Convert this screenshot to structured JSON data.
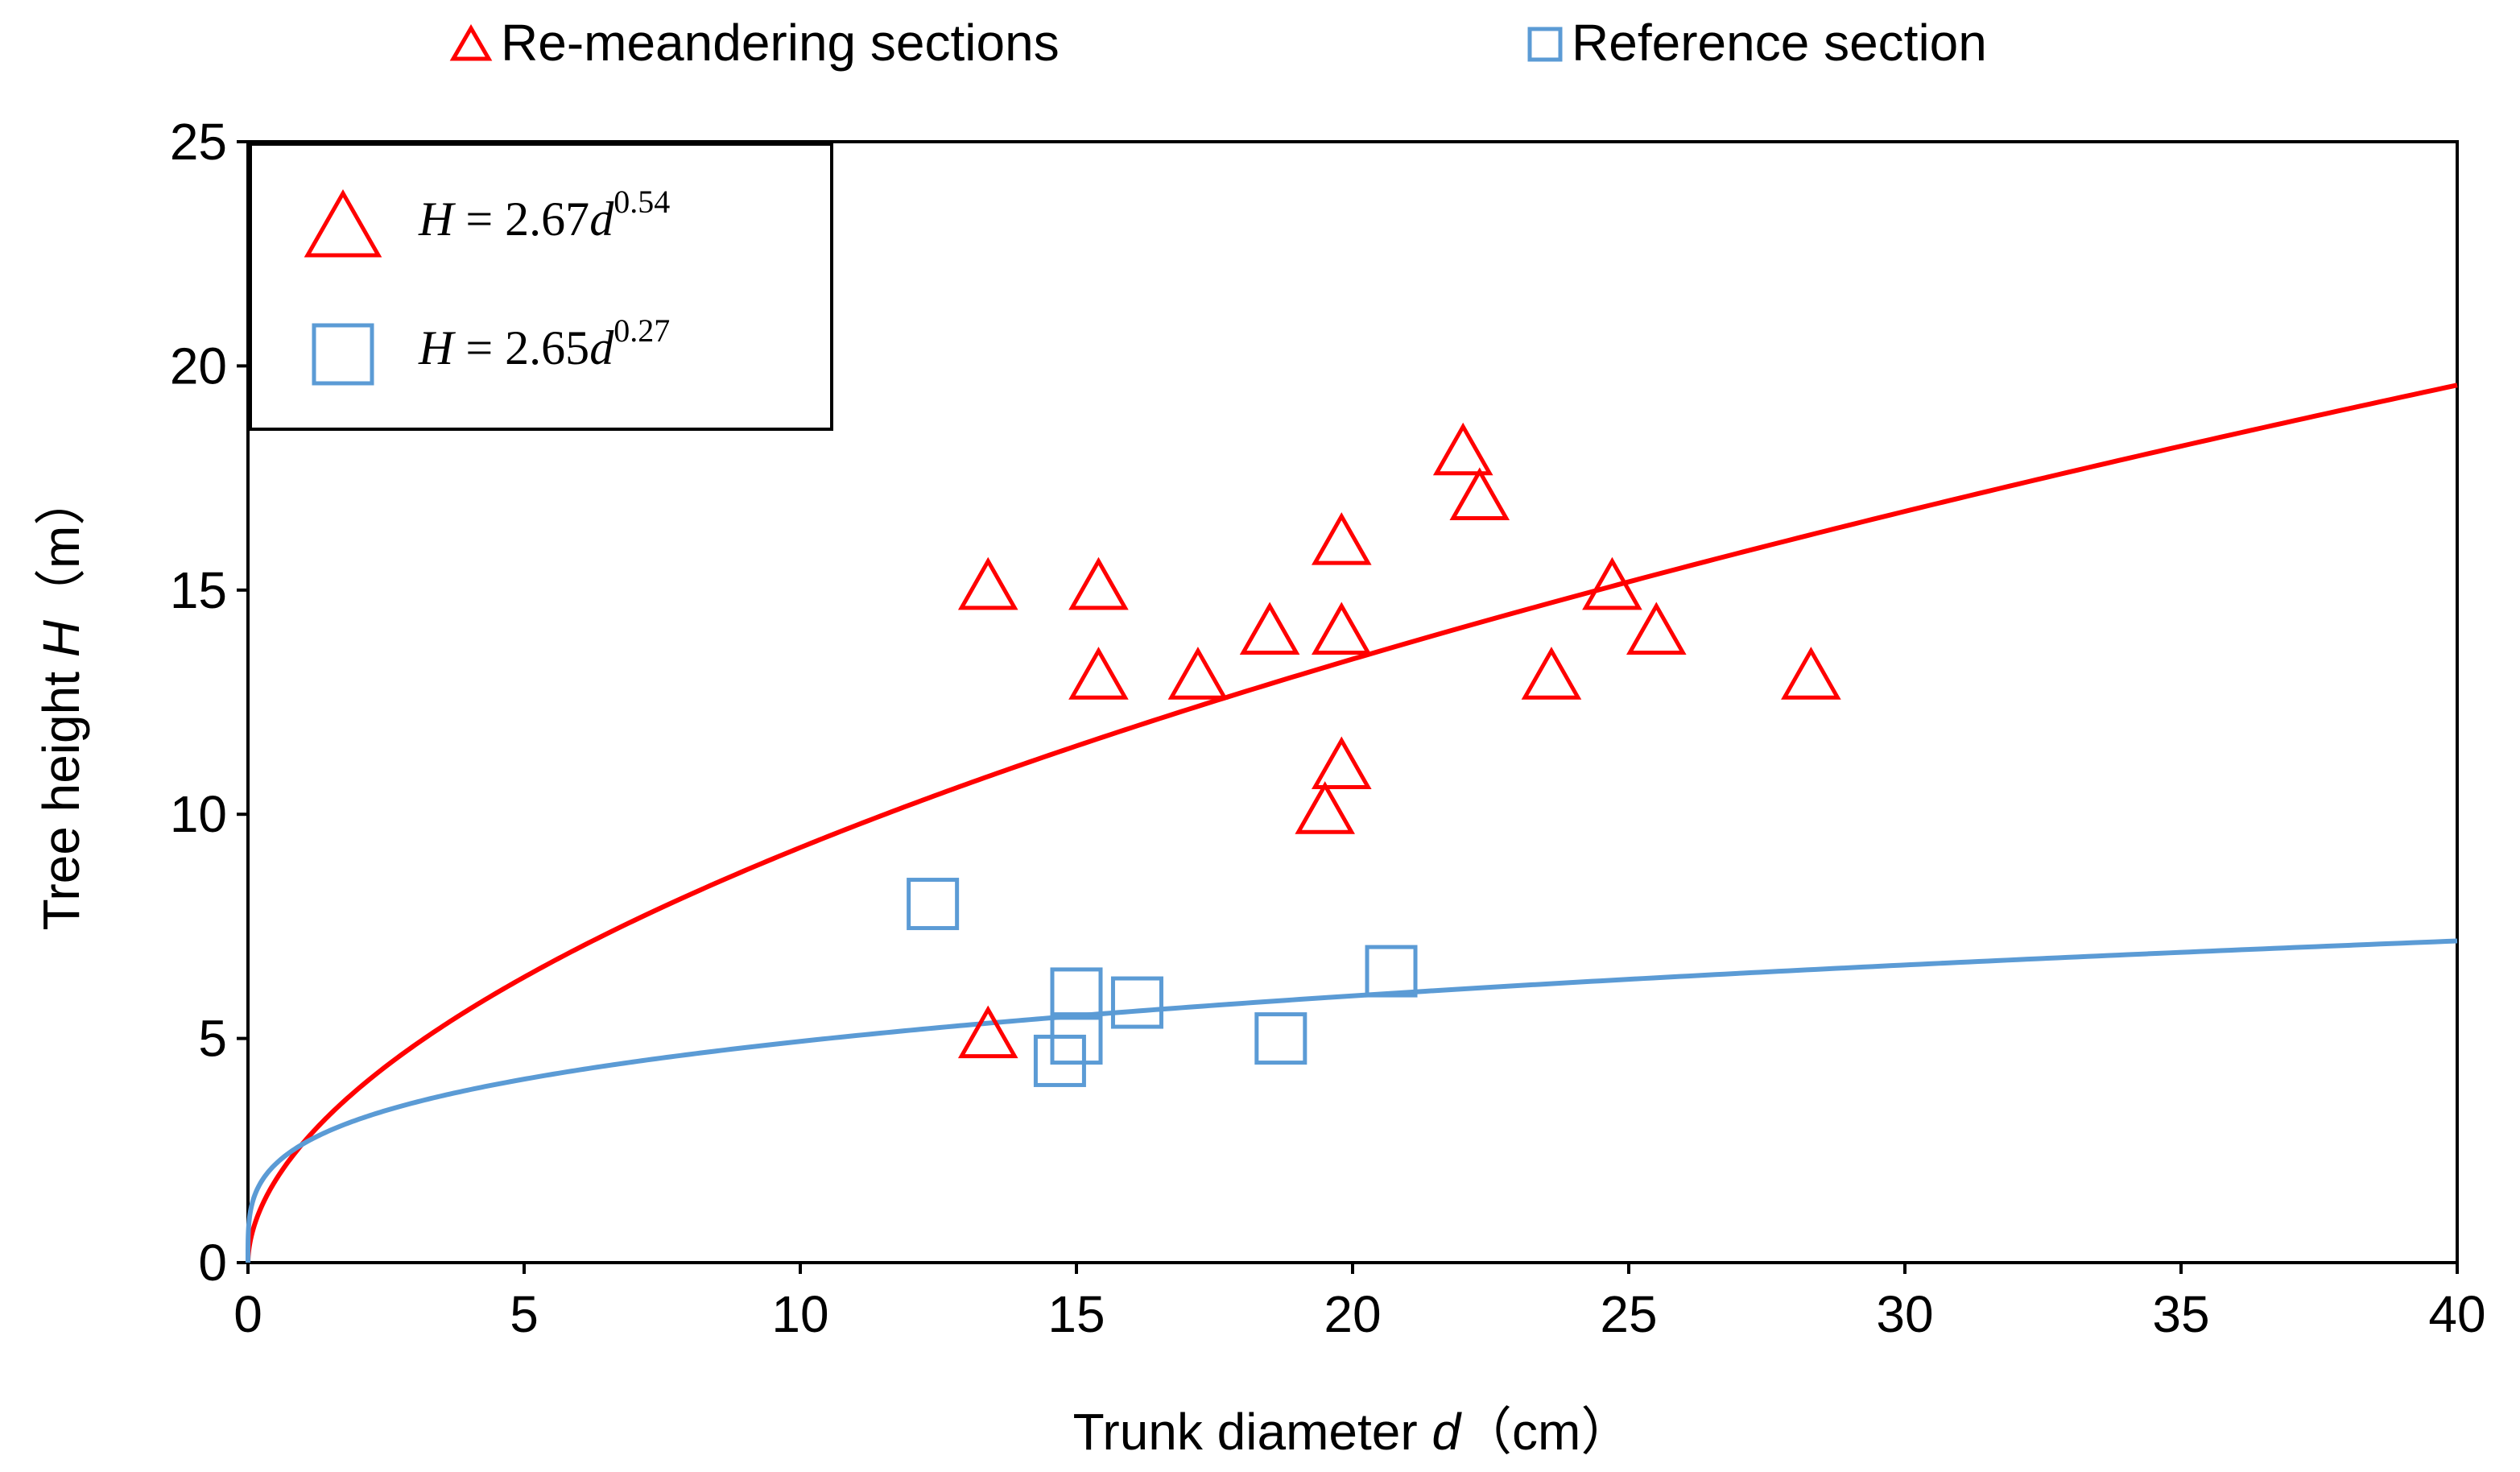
{
  "chart_data": {
    "type": "scatter",
    "title": "",
    "xlabel_main": "Trunk diameter ",
    "xlabel_var": "d",
    "xlabel_unit": "（cm）",
    "ylabel_main": "Tree height ",
    "ylabel_var": "H",
    "ylabel_unit": "（m）",
    "xlim": [
      0,
      40
    ],
    "ylim": [
      0,
      25
    ],
    "xticks": [
      "0",
      "5",
      "10",
      "15",
      "20",
      "25",
      "30",
      "35",
      "40"
    ],
    "yticks": [
      "0",
      "5",
      "10",
      "15",
      "20",
      "25"
    ],
    "grid": false,
    "legend_position": "top",
    "series": [
      {
        "name": "Re-meandering sections",
        "marker": "triangle",
        "color": "#ff0000",
        "equation_lhs": "H",
        "equation_mid": " = 2.67",
        "equation_var": "d",
        "equation_exp": "0.54",
        "coef": 2.67,
        "exponent": 0.54,
        "points": [
          [
            13.4,
            15
          ],
          [
            15.4,
            15
          ],
          [
            15.4,
            13
          ],
          [
            17.2,
            13
          ],
          [
            18.5,
            14
          ],
          [
            19.8,
            16
          ],
          [
            19.8,
            14
          ],
          [
            19.8,
            11
          ],
          [
            19.5,
            10
          ],
          [
            22,
            18
          ],
          [
            22.3,
            17
          ],
          [
            24.7,
            15
          ],
          [
            25.5,
            14
          ],
          [
            23.6,
            13
          ],
          [
            28.3,
            13
          ],
          [
            13.4,
            5
          ]
        ]
      },
      {
        "name": "Reference section",
        "marker": "square",
        "color": "#5b9bd5",
        "equation_lhs": "H",
        "equation_mid": " = 2.65",
        "equation_var": "d",
        "equation_exp": "0.27",
        "coef": 2.65,
        "exponent": 0.27,
        "points": [
          [
            12.4,
            8
          ],
          [
            15,
            6
          ],
          [
            15,
            5
          ],
          [
            14.7,
            4.5
          ],
          [
            16.1,
            5.8
          ],
          [
            18.7,
            5
          ],
          [
            20.7,
            6.5
          ]
        ]
      }
    ]
  }
}
